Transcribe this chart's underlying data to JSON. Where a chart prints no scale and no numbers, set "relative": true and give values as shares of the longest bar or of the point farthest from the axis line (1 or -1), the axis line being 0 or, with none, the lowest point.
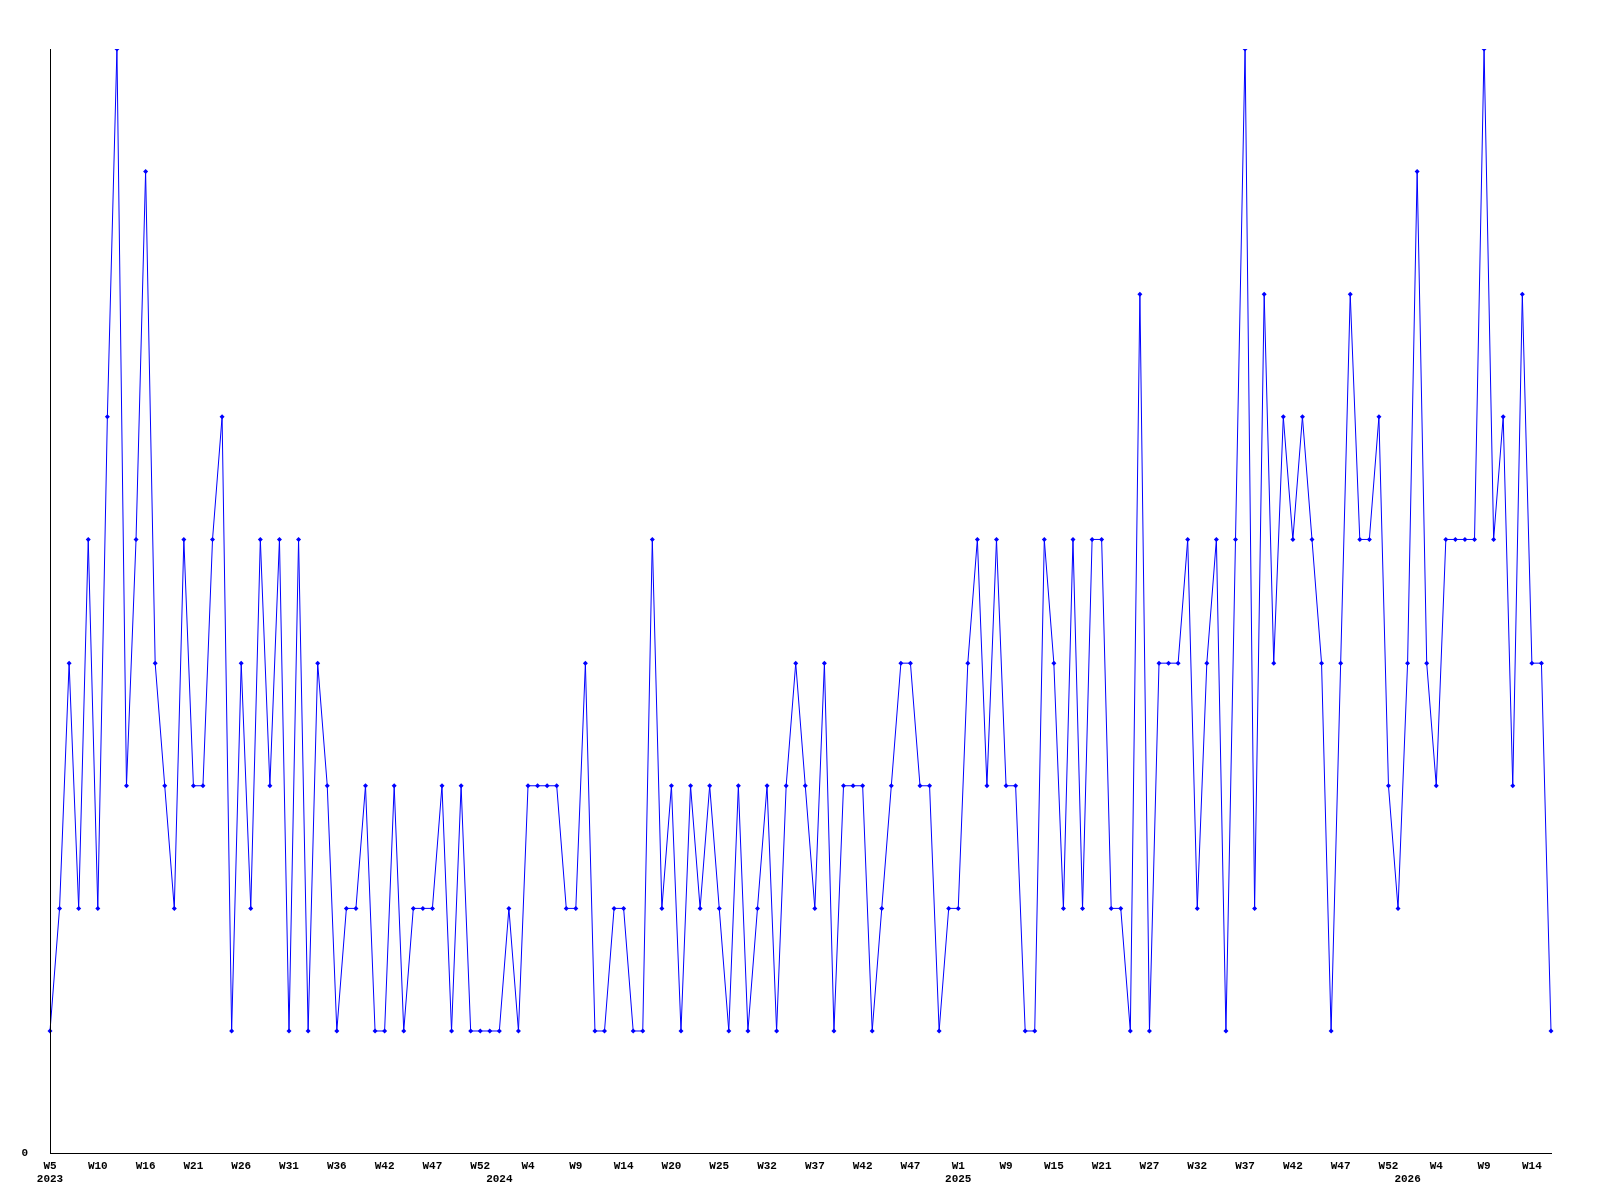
{
  "chart_data": {
    "type": "line",
    "relative": true,
    "marker": "diamond",
    "line_style": "solid",
    "grid": false,
    "legend": false,
    "annotations": [
      "0"
    ],
    "categories": [
      "W5\n2023",
      null,
      null,
      null,
      null,
      "W10",
      null,
      null,
      null,
      null,
      "W16",
      null,
      null,
      null,
      null,
      "W21",
      null,
      null,
      null,
      null,
      "W26",
      null,
      null,
      null,
      null,
      "W31",
      null,
      null,
      null,
      null,
      "W36",
      null,
      null,
      null,
      null,
      "W42",
      null,
      null,
      null,
      null,
      "W47",
      null,
      null,
      null,
      null,
      "W52",
      null,
      "\n2024",
      null,
      null,
      "W4",
      null,
      null,
      null,
      null,
      "W9",
      null,
      null,
      null,
      null,
      "W14",
      null,
      null,
      null,
      null,
      "W20",
      null,
      null,
      null,
      null,
      "W25",
      null,
      null,
      null,
      null,
      "W32",
      null,
      null,
      null,
      null,
      "W37",
      null,
      null,
      null,
      null,
      "W42",
      null,
      null,
      null,
      null,
      "W47",
      null,
      null,
      null,
      null,
      "W1\n2025",
      null,
      null,
      null,
      null,
      "W9",
      null,
      null,
      null,
      null,
      "W15",
      null,
      null,
      null,
      null,
      "W21",
      null,
      null,
      null,
      null,
      "W27",
      null,
      null,
      null,
      null,
      "W32",
      null,
      null,
      null,
      null,
      "W37",
      null,
      null,
      null,
      null,
      "W42",
      null,
      null,
      null,
      null,
      "W47",
      null,
      null,
      null,
      null,
      "W52",
      null,
      "\n2026",
      null,
      null,
      "W4",
      null,
      null,
      null,
      null,
      "W9",
      null,
      null,
      null,
      null,
      "W14",
      null,
      null
    ],
    "series": [
      {
        "color": "#0000ff",
        "values": [
          0.111,
          0.222,
          0.444,
          0.222,
          0.556,
          0.222,
          0.667,
          1,
          0.333,
          0.556,
          0.889,
          0.444,
          0.333,
          0.222,
          0.556,
          0.333,
          0.333,
          0.556,
          0.667,
          0.111,
          0.444,
          0.222,
          0.556,
          0.333,
          0.556,
          0.111,
          0.556,
          0.111,
          0.444,
          0.333,
          0.111,
          0.222,
          0.222,
          0.333,
          0.111,
          0.111,
          0.333,
          0.111,
          0.222,
          0.222,
          0.222,
          0.333,
          0.111,
          0.333,
          0.111,
          0.111,
          0.111,
          0.111,
          0.222,
          0.111,
          0.333,
          0.333,
          0.333,
          0.333,
          0.222,
          0.222,
          0.444,
          0.111,
          0.111,
          0.222,
          0.222,
          0.111,
          0.111,
          0.556,
          0.222,
          0.333,
          0.111,
          0.333,
          0.222,
          0.333,
          0.222,
          0.111,
          0.333,
          0.111,
          0.222,
          0.333,
          0.111,
          0.333,
          0.444,
          0.333,
          0.222,
          0.444,
          0.111,
          0.333,
          0.333,
          0.333,
          0.111,
          0.222,
          0.333,
          0.444,
          0.444,
          0.333,
          0.333,
          0.111,
          0.222,
          0.222,
          0.444,
          0.556,
          0.333,
          0.556,
          0.333,
          0.333,
          0.111,
          0.111,
          0.556,
          0.444,
          0.222,
          0.556,
          0.222,
          0.556,
          0.556,
          0.222,
          0.222,
          0.111,
          0.778,
          0.111,
          0.444,
          0.444,
          0.444,
          0.556,
          0.222,
          0.444,
          0.556,
          0.111,
          0.556,
          1,
          0.222,
          0.778,
          0.444,
          0.667,
          0.556,
          0.667,
          0.556,
          0.444,
          0.111,
          0.444,
          0.778,
          0.556,
          0.556,
          0.667,
          0.333,
          0.222,
          0.444,
          0.889,
          0.444,
          0.333,
          0.556,
          0.556,
          0.556,
          0.556,
          1,
          0.556,
          0.667,
          0.333,
          0.778,
          0.444,
          0.444,
          0.111
        ]
      }
    ]
  }
}
